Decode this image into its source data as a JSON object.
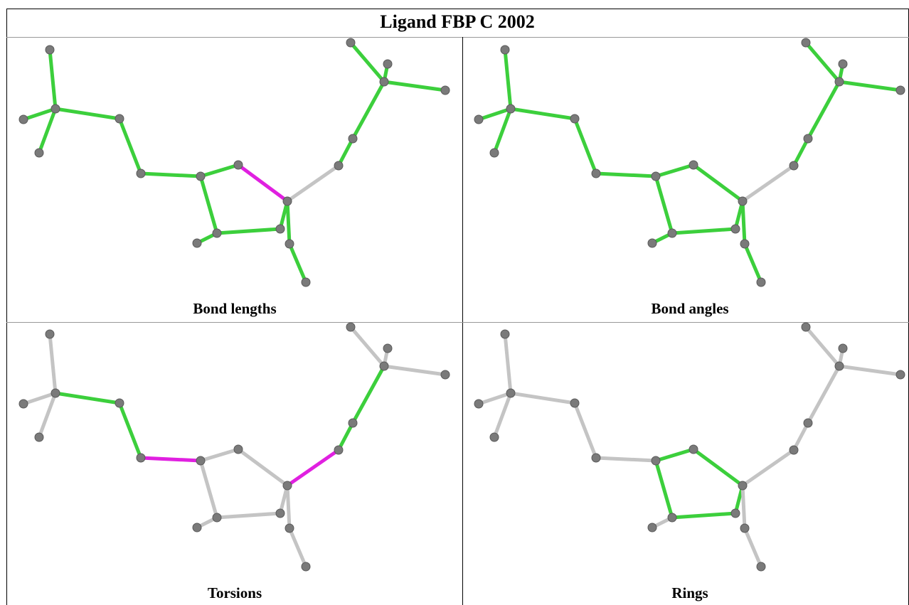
{
  "title": "Ligand FBP C 2002",
  "panels": [
    {
      "caption": "Bond lengths"
    },
    {
      "caption": "Bond angles"
    },
    {
      "caption": "Torsions"
    },
    {
      "caption": "Rings"
    }
  ]
}
